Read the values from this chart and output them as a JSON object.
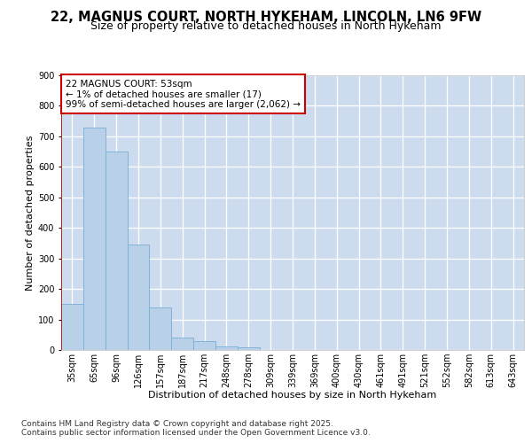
{
  "title_line1": "22, MAGNUS COURT, NORTH HYKEHAM, LINCOLN, LN6 9FW",
  "title_line2": "Size of property relative to detached houses in North Hykeham",
  "xlabel": "Distribution of detached houses by size in North Hykeham",
  "ylabel": "Number of detached properties",
  "categories": [
    "35sqm",
    "65sqm",
    "96sqm",
    "126sqm",
    "157sqm",
    "187sqm",
    "217sqm",
    "248sqm",
    "278sqm",
    "309sqm",
    "339sqm",
    "369sqm",
    "400sqm",
    "430sqm",
    "461sqm",
    "491sqm",
    "521sqm",
    "552sqm",
    "582sqm",
    "613sqm",
    "643sqm"
  ],
  "values": [
    150,
    730,
    650,
    345,
    140,
    42,
    30,
    12,
    8,
    0,
    0,
    0,
    0,
    0,
    0,
    0,
    0,
    0,
    0,
    0,
    0
  ],
  "bar_color": "#b8d0e8",
  "bar_edgecolor": "#7aadd4",
  "background_color": "#ccdcee",
  "grid_color": "#ffffff",
  "annotation_text": "22 MAGNUS COURT: 53sqm\n← 1% of detached houses are smaller (17)\n99% of semi-detached houses are larger (2,062) →",
  "annotation_box_edgecolor": "#cc0000",
  "annotation_box_facecolor": "#ffffff",
  "ylim": [
    0,
    900
  ],
  "yticks": [
    0,
    100,
    200,
    300,
    400,
    500,
    600,
    700,
    800,
    900
  ],
  "footnote_line1": "Contains HM Land Registry data © Crown copyright and database right 2025.",
  "footnote_line2": "Contains public sector information licensed under the Open Government Licence v3.0.",
  "title_fontsize": 10.5,
  "subtitle_fontsize": 9,
  "axis_label_fontsize": 8,
  "tick_fontsize": 7,
  "annotation_fontsize": 7.5,
  "footnote_fontsize": 6.5,
  "fig_bg": "#ffffff"
}
